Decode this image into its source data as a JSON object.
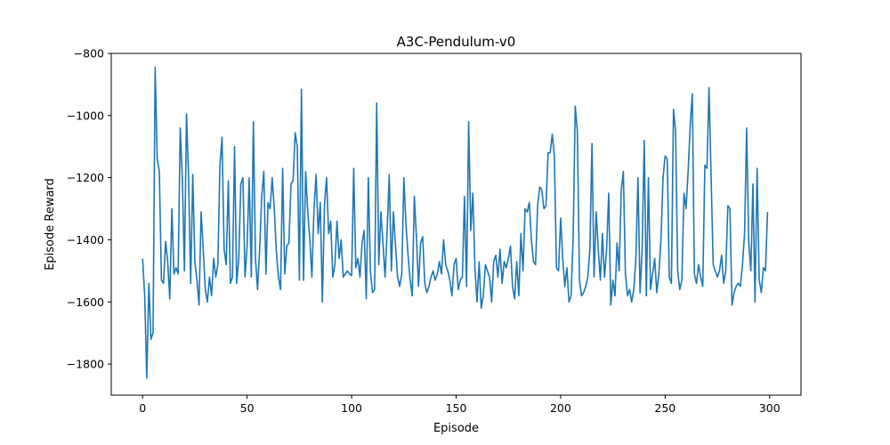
{
  "chart_data": {
    "type": "line",
    "title": "A3C-Pendulum-v0",
    "xlabel": "Episode",
    "ylabel": "Episode Reward",
    "xlim": [
      -15,
      315
    ],
    "ylim": [
      -1900,
      -800
    ],
    "xticks": [
      0,
      50,
      100,
      150,
      200,
      250,
      300
    ],
    "yticks": [
      -1800,
      -1600,
      -1400,
      -1200,
      -1000,
      -800
    ],
    "grid": false,
    "line_color": "#1f77b4",
    "series": [
      {
        "values": [
          -1460,
          -1580,
          -1845,
          -1540,
          -1720,
          -1700,
          -845,
          -1140,
          -1180,
          -1530,
          -1540,
          -1405,
          -1470,
          -1590,
          -1300,
          -1510,
          -1490,
          -1510,
          -1040,
          -1200,
          -1500,
          -995,
          -1200,
          -1540,
          -1190,
          -1470,
          -1530,
          -1610,
          -1310,
          -1430,
          -1560,
          -1600,
          -1520,
          -1580,
          -1460,
          -1520,
          -1480,
          -1160,
          -1070,
          -1430,
          -1480,
          -1210,
          -1540,
          -1520,
          -1100,
          -1540,
          -1460,
          -1220,
          -1200,
          -1520,
          -1420,
          -1200,
          -1520,
          -1020,
          -1460,
          -1560,
          -1430,
          -1260,
          -1180,
          -1510,
          -1280,
          -1300,
          -1200,
          -1300,
          -1440,
          -1520,
          -1560,
          -1170,
          -1510,
          -1420,
          -1410,
          -1220,
          -1210,
          -1055,
          -1100,
          -1530,
          -915,
          -1530,
          -1180,
          -1310,
          -1400,
          -1520,
          -1300,
          -1190,
          -1380,
          -1280,
          -1600,
          -1290,
          -1200,
          -1380,
          -1340,
          -1520,
          -1480,
          -1340,
          -1460,
          -1400,
          -1520,
          -1510,
          -1500,
          -1510,
          -1515,
          -1170,
          -1490,
          -1460,
          -1520,
          -1410,
          -1370,
          -1590,
          -1200,
          -1500,
          -1570,
          -1560,
          -960,
          -1480,
          -1310,
          -1410,
          -1520,
          -1370,
          -1190,
          -1500,
          -1310,
          -1420,
          -1520,
          -1550,
          -1510,
          -1200,
          -1350,
          -1450,
          -1530,
          -1580,
          -1260,
          -1390,
          -1550,
          -1410,
          -1390,
          -1540,
          -1570,
          -1550,
          -1520,
          -1500,
          -1530,
          -1510,
          -1470,
          -1510,
          -1400,
          -1480,
          -1500,
          -1530,
          -1580,
          -1480,
          -1460,
          -1560,
          -1530,
          -1520,
          -1260,
          -1550,
          -1020,
          -1370,
          -1250,
          -1490,
          -1600,
          -1470,
          -1620,
          -1580,
          -1480,
          -1500,
          -1520,
          -1600,
          -1470,
          -1450,
          -1520,
          -1430,
          -1540,
          -1470,
          -1490,
          -1460,
          -1420,
          -1550,
          -1590,
          -1470,
          -1580,
          -1380,
          -1500,
          -1300,
          -1310,
          -1280,
          -1400,
          -1470,
          -1480,
          -1290,
          -1230,
          -1240,
          -1300,
          -1290,
          -1120,
          -1120,
          -1060,
          -1130,
          -1490,
          -1500,
          -1330,
          -1460,
          -1550,
          -1490,
          -1600,
          -1580,
          -1390,
          -970,
          -1050,
          -1530,
          -1580,
          -1570,
          -1550,
          -1520,
          -1430,
          -1090,
          -1520,
          -1310,
          -1430,
          -1530,
          -1380,
          -1520,
          -1430,
          -1250,
          -1610,
          -1530,
          -1580,
          -1410,
          -1500,
          -1240,
          -1180,
          -1510,
          -1580,
          -1560,
          -1600,
          -1560,
          -1460,
          -1200,
          -1570,
          -1430,
          -1080,
          -1580,
          -1200,
          -1560,
          -1510,
          -1460,
          -1570,
          -1510,
          -1400,
          -1200,
          -1130,
          -1140,
          -1520,
          -1540,
          -980,
          -1050,
          -1500,
          -1560,
          -1530,
          -1250,
          -1300,
          -1180,
          -1030,
          -930,
          -1510,
          -1540,
          -1480,
          -1520,
          -1550,
          -1160,
          -1170,
          -910,
          -1200,
          -1480,
          -1500,
          -1520,
          -1500,
          -1450,
          -1540,
          -1500,
          -1290,
          -1300,
          -1610,
          -1570,
          -1550,
          -1540,
          -1550,
          -1480,
          -1380,
          -1040,
          -1410,
          -1500,
          -1220,
          -1600,
          -1170,
          -1530,
          -1570,
          -1490,
          -1500,
          -1310
        ]
      }
    ]
  }
}
